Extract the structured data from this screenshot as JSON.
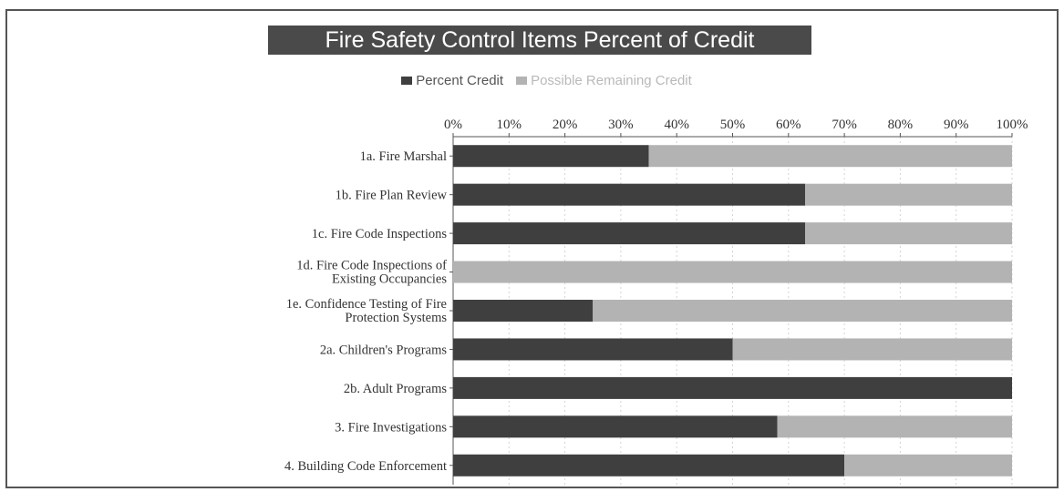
{
  "chart_data": {
    "type": "bar",
    "orientation": "horizontal",
    "stacked": true,
    "title": "Fire Safety Control Items Percent of Credit",
    "categories": [
      "1a. Fire Marshal",
      "1b. Fire Plan Review",
      "1c. Fire Code Inspections",
      "1d. Fire Code Inspections of Existing Occupancies",
      "1e. Confidence Testing of Fire Protection Systems",
      "2a. Children's Programs",
      "2b. Adult Programs",
      "3. Fire Investigations",
      "4. Building Code Enforcement"
    ],
    "series": [
      {
        "name": "Percent Credit",
        "color": "#3f3f3f",
        "values": [
          35,
          63,
          63,
          0,
          25,
          50,
          100,
          58,
          70
        ]
      },
      {
        "name": "Possible Remaining Credit",
        "color": "#b3b3b3",
        "values": [
          65,
          37,
          37,
          100,
          75,
          50,
          0,
          42,
          30
        ]
      }
    ],
    "x_ticks": [
      "0%",
      "10%",
      "20%",
      "30%",
      "40%",
      "50%",
      "60%",
      "70%",
      "80%",
      "90%",
      "100%"
    ],
    "xlim": [
      0,
      100
    ],
    "x_axis_position": "top",
    "legend_position": "top",
    "grid": true
  }
}
